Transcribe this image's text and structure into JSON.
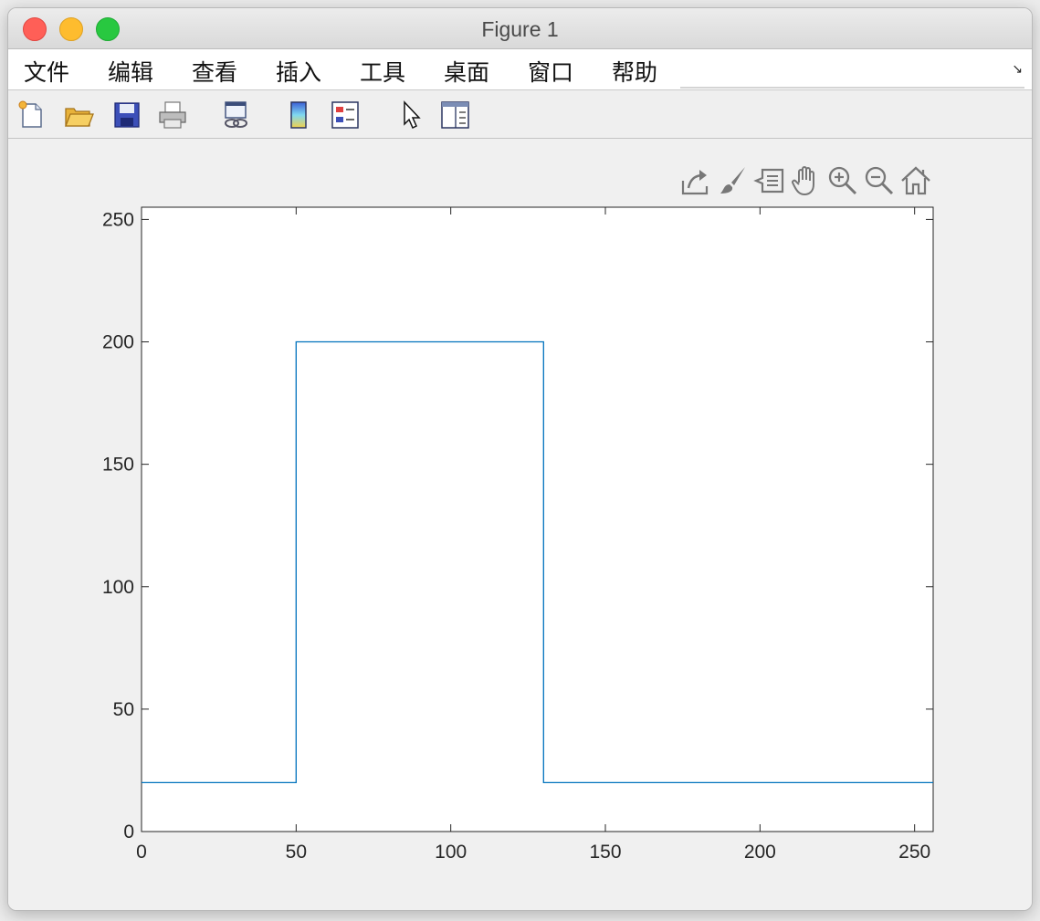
{
  "window": {
    "title": "Figure 1"
  },
  "menubar": {
    "items": [
      "文件",
      "编辑",
      "查看",
      "插入",
      "工具",
      "桌面",
      "窗口",
      "帮助"
    ]
  },
  "toolbar": {
    "icons": [
      "new-figure-icon",
      "open-file-icon",
      "save-icon",
      "print-icon",
      "link-plot-icon",
      "colorbar-icon",
      "legend-icon",
      "pointer-icon",
      "property-editor-icon"
    ]
  },
  "axes_toolbar": {
    "icons": [
      "export-icon",
      "brush-icon",
      "data-tips-icon",
      "pan-icon",
      "zoom-in-icon",
      "zoom-out-icon",
      "home-icon"
    ]
  },
  "chart_data": {
    "type": "line",
    "title": "",
    "xlabel": "",
    "ylabel": "",
    "xlim": [
      0,
      256
    ],
    "ylim": [
      0,
      255
    ],
    "xticks": [
      0,
      50,
      100,
      150,
      200,
      250
    ],
    "yticks": [
      0,
      50,
      100,
      150,
      200,
      250
    ],
    "grid": false,
    "line_color": "#0072bd",
    "series": [
      {
        "x": [
          0,
          50,
          50,
          130,
          130,
          256
        ],
        "y": [
          20,
          20,
          200,
          200,
          20,
          20
        ]
      }
    ]
  }
}
